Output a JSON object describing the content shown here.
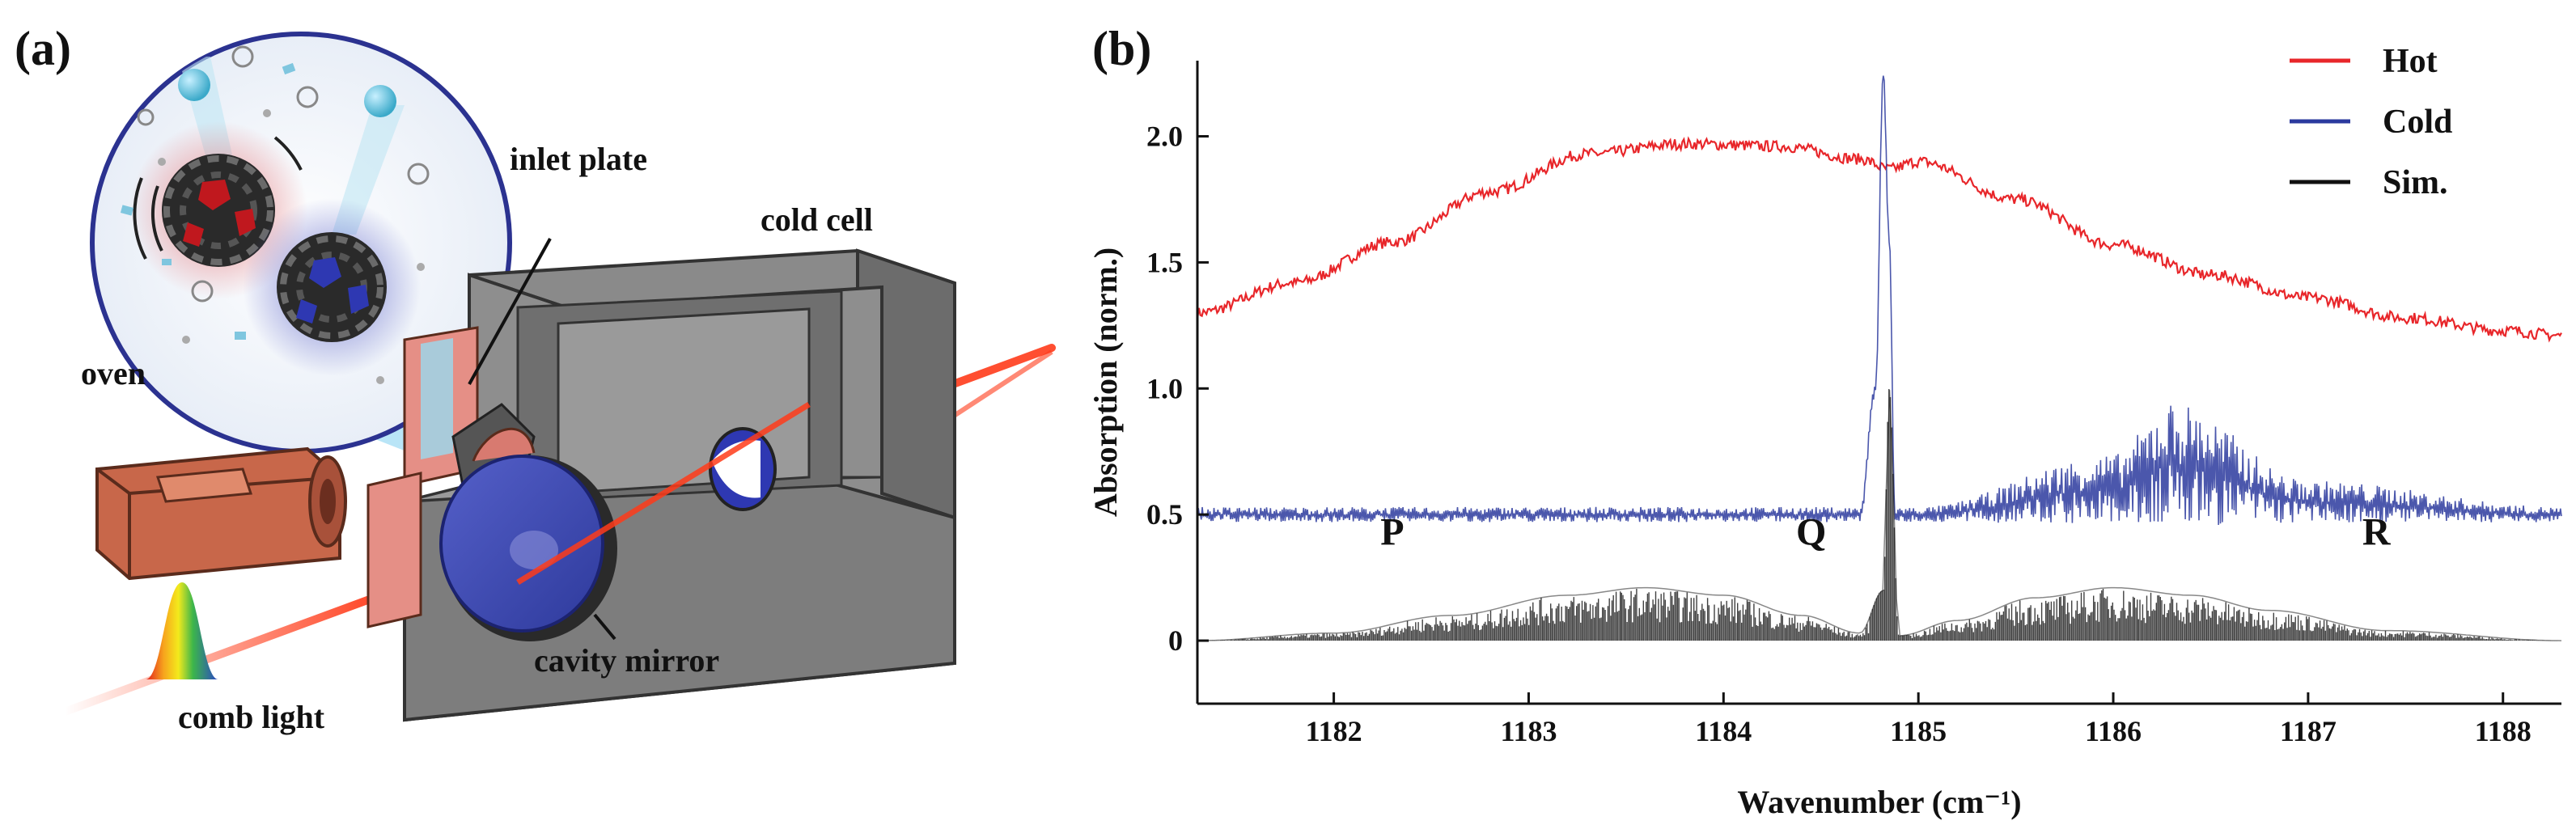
{
  "panel_a": {
    "label": "(a)",
    "callouts": {
      "oven": "oven",
      "inlet_plate": "inlet plate",
      "cold_cell": "cold cell",
      "cavity_mirror": "cavity mirror",
      "comb_light": "comb light"
    }
  },
  "panel_b": {
    "label": "(b)"
  },
  "chart_data": {
    "type": "line",
    "title": "",
    "xlabel": "Wavenumber (cm⁻¹)",
    "ylabel": "Absorption (norm.)",
    "xlim": [
      1181.3,
      1188.3
    ],
    "ylim": [
      -0.25,
      2.3
    ],
    "xticks": [
      1182,
      1183,
      1184,
      1185,
      1186,
      1187,
      1188
    ],
    "yticks": [
      0,
      0.5,
      1.0,
      1.5,
      2.0
    ],
    "xtick_labels": [
      "1182",
      "1183",
      "1184",
      "1185",
      "1186",
      "1187",
      "1188"
    ],
    "ytick_labels": [
      "0",
      "0.5",
      "1.0",
      "1.5",
      "2.0"
    ],
    "legend_position": "top-right",
    "series": [
      {
        "name": "Hot",
        "color": "#e8262a",
        "x": [
          1181.3,
          1181.8,
          1182.3,
          1182.8,
          1183.3,
          1183.8,
          1184.3,
          1184.7,
          1184.85,
          1185.0,
          1185.5,
          1186.0,
          1186.5,
          1187.0,
          1187.5,
          1188.0,
          1188.3
        ],
        "y": [
          1.3,
          1.42,
          1.58,
          1.78,
          1.93,
          1.97,
          1.96,
          1.91,
          1.87,
          1.9,
          1.75,
          1.57,
          1.45,
          1.36,
          1.28,
          1.23,
          1.21
        ]
      },
      {
        "name": "Cold",
        "color": "#2b3a9e",
        "x": [
          1181.3,
          1184.7,
          1184.78,
          1184.82,
          1184.85,
          1184.88,
          1185.0,
          1186.0,
          1186.3,
          1187.0,
          1188.3
        ],
        "y": [
          0.5,
          0.5,
          1.0,
          2.25,
          1.6,
          0.5,
          0.5,
          0.6,
          0.7,
          0.55,
          0.5
        ]
      },
      {
        "name": "Sim.",
        "color": "#111111",
        "x": [
          1181.3,
          1182.0,
          1182.6,
          1183.2,
          1183.6,
          1184.0,
          1184.4,
          1184.7,
          1184.82,
          1184.85,
          1184.9,
          1185.2,
          1185.6,
          1186.0,
          1186.4,
          1186.8,
          1187.4,
          1188.3
        ],
        "y": [
          0.0,
          0.03,
          0.1,
          0.18,
          0.21,
          0.18,
          0.1,
          0.03,
          0.2,
          1.0,
          0.02,
          0.08,
          0.17,
          0.21,
          0.18,
          0.12,
          0.04,
          0.0
        ]
      }
    ],
    "annotations": [
      "P",
      "Q",
      "R"
    ]
  }
}
